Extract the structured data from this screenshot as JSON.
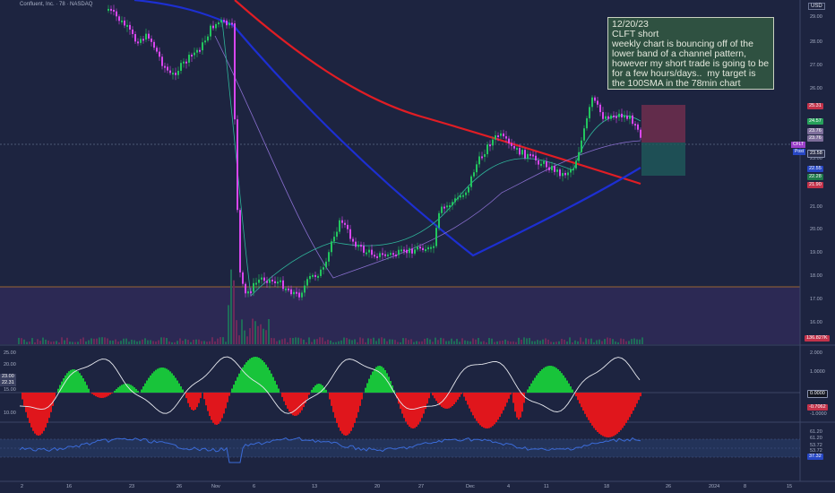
{
  "header": {
    "symbol_line": "Confluent, Inc. · 78 · NASDAQ",
    "currency": "USD"
  },
  "note": {
    "date": "12/20/23",
    "title": "CLFT short",
    "body": "weekly chart is bouncing off of the lower band of a channel pattern, however my short trade is going to be for a few hours/days..  my target is the 100SMA in the 78min chart"
  },
  "price_axis": {
    "ticks": [
      "29.00",
      "28.00",
      "27.00",
      "26.00",
      "25.00",
      "24.00",
      "23.00",
      "22.00",
      "21.00",
      "20.00",
      "19.00",
      "18.00",
      "17.00",
      "16.00"
    ],
    "tags": [
      {
        "label": "25.31",
        "color": "#c2324a"
      },
      {
        "label": "24.57",
        "color": "#26a05a"
      },
      {
        "label": "23.76",
        "color": "#7d6d9a"
      },
      {
        "label": "23.76",
        "color": "#7d6d9a"
      },
      {
        "label": "23.58",
        "color": "#2b2f4a"
      },
      {
        "label": "22.55",
        "color": "#2747c4"
      },
      {
        "label": "22.28",
        "color": "#1f7a4a"
      },
      {
        "label": "21.90",
        "color": "#c2324a"
      }
    ],
    "symbol_tag": "CFLT",
    "post_tag": "Post",
    "volume_tag": "136.827K"
  },
  "osc_axis": {
    "right_ticks": [
      "2.000",
      "1.0000",
      "0.0000",
      "-0.7062",
      "-1.0000"
    ],
    "left_ticks": [
      "25.00",
      "20.00",
      "15.00",
      "10.00"
    ],
    "left_tags": [
      "23.00",
      "22.31"
    ]
  },
  "rsi_axis": {
    "right_ticks": [
      "61.20",
      "61.20",
      "53.72",
      "53.72",
      "37.32"
    ]
  },
  "time_axis": {
    "ticks": [
      "2",
      "16",
      "23",
      "26",
      "Nov",
      "6",
      "13",
      "20",
      "27",
      "Dec",
      "4",
      "11",
      "18",
      "26",
      "2024",
      "8",
      "15"
    ]
  },
  "colors": {
    "background": "#1d2440",
    "up": "#22c55e",
    "down": "#d946ef",
    "sma_red": "#e11d24",
    "sma_blue": "#1d2fd1",
    "rsi": "#3b6bd8"
  }
}
